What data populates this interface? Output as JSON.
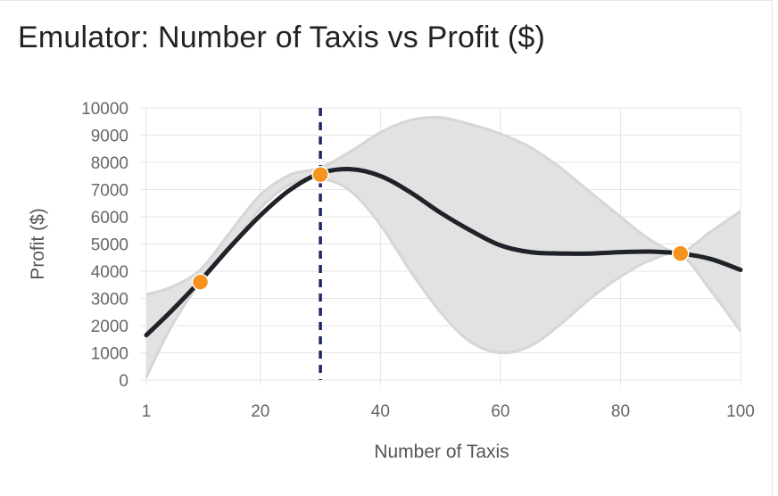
{
  "title": "Emulator: Number of Taxis vs Profit ($)",
  "chart_data": {
    "type": "line",
    "title": "Emulator: Number of Taxis vs Profit ($)",
    "xlabel": "Number of Taxis",
    "ylabel": "Profit ($)",
    "xlim": [
      1,
      100
    ],
    "ylim": [
      0,
      10000
    ],
    "x_ticks": [
      "1",
      "20",
      "40",
      "60",
      "80",
      "100"
    ],
    "y_ticks": [
      "0",
      "1000",
      "2000",
      "3000",
      "4000",
      "5000",
      "6000",
      "7000",
      "8000",
      "9000",
      "10000"
    ],
    "grid": true,
    "series": [
      {
        "kind": "mean",
        "color": "#1f2329",
        "x": [
          1,
          5,
          10,
          15,
          20,
          25,
          30,
          35,
          40,
          45,
          50,
          55,
          60,
          65,
          70,
          75,
          80,
          85,
          90,
          95,
          100
        ],
        "y": [
          1650,
          2500,
          3650,
          4900,
          6050,
          7000,
          7600,
          7750,
          7500,
          6900,
          6150,
          5500,
          4950,
          4700,
          4650,
          4650,
          4700,
          4720,
          4650,
          4450,
          4050
        ]
      },
      {
        "kind": "band-upper",
        "color": "#d6d6d6",
        "x": [
          1,
          5,
          10,
          15,
          20,
          25,
          30,
          35,
          40,
          45,
          50,
          55,
          60,
          65,
          70,
          75,
          80,
          85,
          90,
          95,
          100
        ],
        "y": [
          3150,
          3400,
          4050,
          5450,
          6800,
          7550,
          7800,
          8400,
          9100,
          9550,
          9650,
          9400,
          9050,
          8550,
          7800,
          6900,
          6000,
          5150,
          4700,
          5450,
          6200
        ]
      },
      {
        "kind": "band-lower",
        "color": "#d6d6d6",
        "x": [
          1,
          5,
          10,
          15,
          20,
          25,
          30,
          35,
          40,
          45,
          50,
          55,
          60,
          65,
          70,
          75,
          80,
          85,
          90,
          95,
          100
        ],
        "y": [
          100,
          1900,
          3600,
          4850,
          6300,
          7200,
          7400,
          6950,
          5700,
          4000,
          2500,
          1400,
          1000,
          1250,
          2050,
          3000,
          3800,
          4400,
          4600,
          3300,
          1800
        ]
      }
    ],
    "observations": {
      "color": "#f6921e",
      "x": [
        10,
        30,
        90
      ],
      "y": [
        3600,
        7550,
        4650
      ]
    },
    "marker_line": {
      "x": 30,
      "color": "#1c2766"
    }
  }
}
